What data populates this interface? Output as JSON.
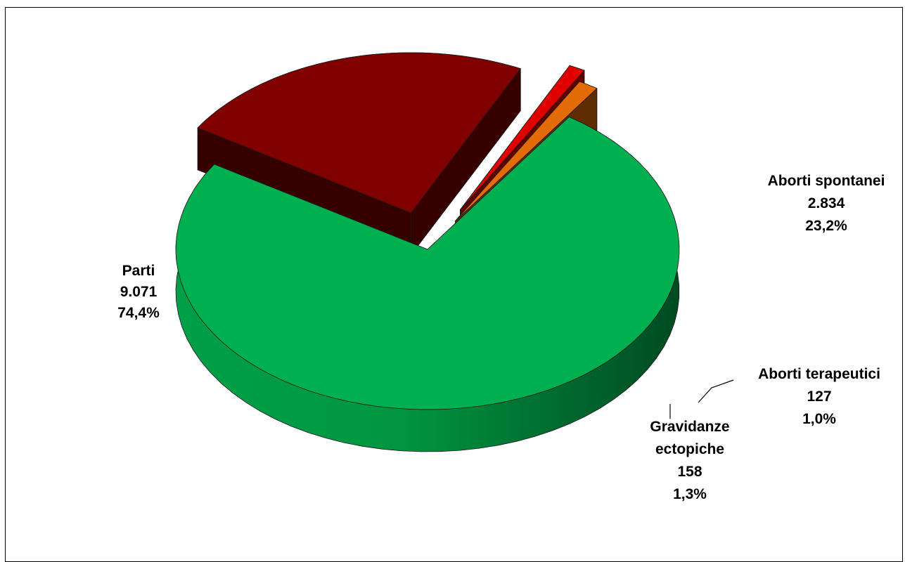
{
  "chart_data": {
    "type": "pie",
    "style": "3d-exploded",
    "slices": [
      {
        "label": "Parti",
        "value": 9071,
        "value_text": "9.071",
        "percent": 74.4,
        "percent_text": "74,4%",
        "color": "#00B050"
      },
      {
        "label": "Aborti spontanei",
        "value": 2834,
        "value_text": "2.834",
        "percent": 23.2,
        "percent_text": "23,2%",
        "color": "#800000"
      },
      {
        "label": "Aborti terapeutici",
        "value": 127,
        "value_text": "127",
        "percent": 1.0,
        "percent_text": "1,0%",
        "color": "#E00000"
      },
      {
        "label": "Gravidanze ectopiche",
        "label_lines": [
          "Gravidanze",
          "ectopiche"
        ],
        "value": 158,
        "value_text": "158",
        "percent": 1.3,
        "percent_text": "1,3%",
        "color": "#E36C09"
      }
    ]
  }
}
